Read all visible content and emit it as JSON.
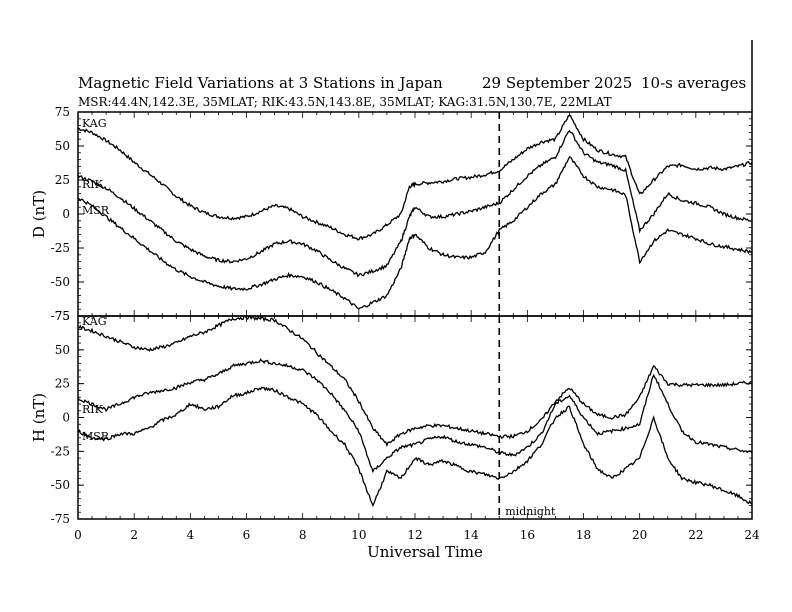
{
  "header": {
    "title": "Magnetic Field Variations at 3 Stations in Japan",
    "date": "29 September 2025",
    "averaging": "10-s averages",
    "stations_info": "MSR:44.4N,142.3E, 35MLAT;  RIK:43.5N,143.8E, 35MLAT;  KAG:31.5N,130.7E, 22MLAT"
  },
  "chart_data": [
    {
      "type": "line",
      "panel": "D",
      "ylabel": "D (nT)",
      "ylim": [
        -75,
        75
      ],
      "yticks": [
        "75",
        "50",
        "25",
        "0",
        "-25",
        "-50",
        "-75"
      ],
      "xlim": [
        0,
        24
      ],
      "series": [
        {
          "name": "KAG",
          "x": [
            0,
            0.5,
            1,
            1.5,
            2,
            2.5,
            3,
            3.5,
            4,
            4.5,
            5,
            5.5,
            6,
            6.5,
            7,
            7.5,
            8,
            8.5,
            9,
            9.5,
            10,
            10.5,
            11,
            11.5,
            11.8,
            12,
            12.5,
            13,
            13.5,
            14,
            14.5,
            15,
            15.5,
            16,
            16.5,
            17,
            17.5,
            18,
            18.5,
            19,
            19.5,
            20,
            20.5,
            21,
            21.5,
            22,
            22.5,
            23,
            23.5,
            24
          ],
          "y": [
            63,
            60,
            54,
            47,
            38,
            30,
            22,
            13,
            6,
            1,
            -2,
            -3,
            -2,
            2,
            6,
            4,
            -2,
            -6,
            -10,
            -15,
            -18,
            -15,
            -8,
            0,
            20,
            22,
            23,
            24,
            26,
            27,
            29,
            32,
            40,
            48,
            53,
            55,
            73,
            55,
            47,
            44,
            42,
            14,
            25,
            35,
            36,
            33,
            34,
            33,
            35,
            38
          ]
        },
        {
          "name": "RIK",
          "x": [
            0,
            0.5,
            1,
            1.5,
            2,
            2.5,
            3,
            3.5,
            4,
            4.5,
            5,
            5.5,
            6,
            6.5,
            7,
            7.5,
            8,
            8.5,
            9,
            9.5,
            10,
            10.5,
            11,
            11.5,
            11.8,
            12,
            12.5,
            13,
            13.5,
            14,
            14.5,
            15,
            15.5,
            16,
            16.5,
            17,
            17.5,
            18,
            18.5,
            19,
            19.5,
            20,
            20.5,
            21,
            21.5,
            22,
            22.5,
            23,
            23.5,
            24
          ],
          "y": [
            28,
            24,
            19,
            12,
            4,
            -4,
            -12,
            -20,
            -26,
            -31,
            -34,
            -35,
            -33,
            -28,
            -22,
            -20,
            -22,
            -27,
            -34,
            -40,
            -45,
            -42,
            -38,
            -20,
            -2,
            5,
            -2,
            -2,
            0,
            2,
            5,
            8,
            18,
            28,
            36,
            42,
            62,
            45,
            38,
            36,
            32,
            -12,
            0,
            15,
            10,
            8,
            5,
            0,
            -3,
            -5
          ]
        },
        {
          "name": "MSR",
          "x": [
            0,
            0.5,
            1,
            1.5,
            2,
            2.5,
            3,
            3.5,
            4,
            4.5,
            5,
            5.5,
            6,
            6.5,
            7,
            7.5,
            8,
            8.5,
            9,
            9.5,
            10,
            10.5,
            11,
            11.5,
            11.8,
            12,
            12.5,
            13,
            13.5,
            14,
            14.5,
            15,
            15.5,
            16,
            16.5,
            17,
            17.5,
            18,
            18.5,
            19,
            19.5,
            20,
            20.5,
            21,
            21.5,
            22,
            22.5,
            23,
            23.5,
            24
          ],
          "y": [
            12,
            6,
            -2,
            -10,
            -18,
            -26,
            -34,
            -41,
            -46,
            -50,
            -53,
            -55,
            -55,
            -52,
            -48,
            -45,
            -46,
            -50,
            -56,
            -62,
            -70,
            -65,
            -60,
            -40,
            -18,
            -15,
            -25,
            -30,
            -32,
            -32,
            -28,
            -12,
            -5,
            5,
            15,
            22,
            42,
            28,
            20,
            18,
            14,
            -35,
            -20,
            -12,
            -15,
            -18,
            -22,
            -24,
            -26,
            -28
          ]
        }
      ],
      "labels": [
        "KAG",
        "RIK",
        "MSR"
      ]
    },
    {
      "type": "line",
      "panel": "H",
      "ylabel": "H (nT)",
      "ylim": [
        -75,
        75
      ],
      "yticks": [
        "75",
        "50",
        "25",
        "0",
        "-25",
        "-50",
        "-75"
      ],
      "xlim": [
        0,
        24
      ],
      "xticks": [
        "0",
        "2",
        "4",
        "6",
        "8",
        "10",
        "12",
        "14",
        "16",
        "18",
        "20",
        "22",
        "24"
      ],
      "xlabel": "Universal Time",
      "series": [
        {
          "name": "KAG",
          "x": [
            0,
            0.5,
            1,
            1.5,
            2,
            2.5,
            3,
            3.5,
            4,
            4.5,
            5,
            5.5,
            6,
            6.5,
            7,
            7.5,
            8,
            8.5,
            9,
            9.5,
            10,
            10.5,
            11,
            11.5,
            12,
            12.5,
            13,
            13.5,
            14,
            14.5,
            15,
            15.5,
            16,
            16.5,
            17,
            17.5,
            18,
            18.5,
            19,
            19.5,
            20,
            20.5,
            21,
            21.5,
            22,
            22.5,
            23,
            23.5,
            24
          ],
          "y": [
            67,
            64,
            60,
            56,
            52,
            50,
            52,
            55,
            60,
            63,
            68,
            73,
            74,
            73,
            72,
            65,
            58,
            48,
            38,
            28,
            12,
            -8,
            -20,
            -12,
            -8,
            -6,
            -6,
            -8,
            -10,
            -12,
            -14,
            -14,
            -10,
            -2,
            12,
            22,
            10,
            2,
            0,
            2,
            15,
            38,
            25,
            24,
            24,
            24,
            24,
            25,
            26
          ]
        },
        {
          "name": "RIK",
          "x": [
            0,
            0.5,
            1,
            1.5,
            2,
            2.5,
            3,
            3.5,
            4,
            4.5,
            5,
            5.5,
            6,
            6.5,
            7,
            7.5,
            8,
            8.5,
            9,
            9.5,
            10,
            10.5,
            11,
            11.5,
            12,
            12.5,
            13,
            13.5,
            14,
            14.5,
            15,
            15.5,
            16,
            16.5,
            17,
            17.5,
            18,
            18.5,
            19,
            19.5,
            20,
            20.5,
            21,
            21.5,
            22,
            22.5,
            23,
            23.5,
            24
          ],
          "y": [
            14,
            10,
            6,
            10,
            15,
            18,
            20,
            22,
            26,
            28,
            32,
            38,
            40,
            42,
            40,
            38,
            35,
            28,
            18,
            5,
            -10,
            -40,
            -30,
            -22,
            -20,
            -16,
            -14,
            -18,
            -20,
            -22,
            -26,
            -28,
            -22,
            -12,
            10,
            16,
            0,
            -12,
            -10,
            -8,
            -5,
            32,
            10,
            -10,
            -18,
            -20,
            -22,
            -24,
            -26
          ]
        },
        {
          "name": "MSR",
          "x": [
            0,
            0.5,
            1,
            1.5,
            2,
            2.5,
            3,
            3.5,
            4,
            4.5,
            5,
            5.5,
            6,
            6.5,
            7,
            7.5,
            8,
            8.5,
            9,
            9.5,
            10,
            10.5,
            11,
            11.5,
            12,
            12.5,
            13,
            13.5,
            14,
            14.5,
            15,
            15.5,
            16,
            16.5,
            17,
            17.5,
            18,
            18.5,
            19,
            19.5,
            20,
            20.5,
            21,
            21.5,
            22,
            22.5,
            23,
            23.5,
            24
          ],
          "y": [
            -10,
            -15,
            -16,
            -12,
            -12,
            -8,
            -2,
            2,
            10,
            6,
            8,
            16,
            18,
            22,
            20,
            15,
            10,
            2,
            -10,
            -20,
            -38,
            -65,
            -40,
            -45,
            -30,
            -35,
            -32,
            -36,
            -40,
            -42,
            -45,
            -40,
            -32,
            -20,
            0,
            8,
            -20,
            -38,
            -45,
            -38,
            -30,
            0,
            -30,
            -45,
            -48,
            -50,
            -54,
            -58,
            -64
          ]
        }
      ],
      "labels": [
        "KAG",
        "RIK",
        "MSR"
      ]
    }
  ],
  "annotations": {
    "midnight_ut": 15,
    "midnight_label": "midnight"
  }
}
